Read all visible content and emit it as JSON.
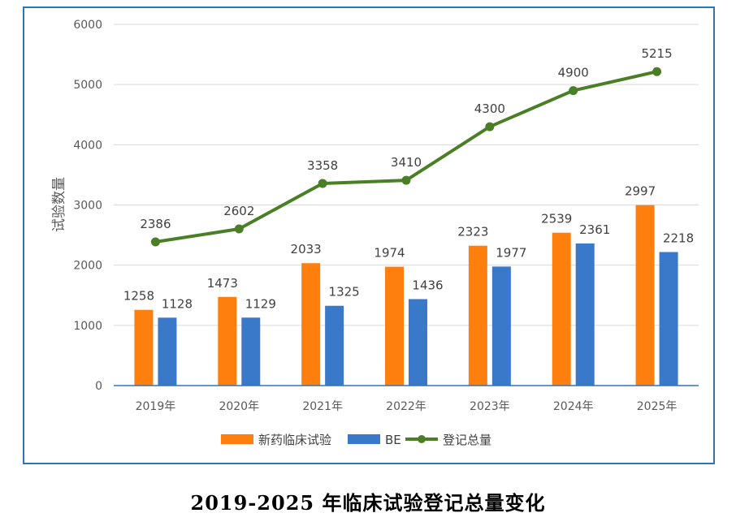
{
  "caption": "2019-2025 年临床试验登记总量变化",
  "chart_data": {
    "type": "bar",
    "categories": [
      "2019年",
      "2020年",
      "2021年",
      "2022年",
      "2023年",
      "2024年",
      "2025年"
    ],
    "series": [
      {
        "name": "新药临床试验",
        "type": "bar",
        "color": "#ff7f0e",
        "values": [
          1258,
          1473,
          2033,
          1974,
          2323,
          2539,
          2997
        ]
      },
      {
        "name": "BE",
        "type": "bar",
        "color": "#3a78c9",
        "values": [
          1128,
          1129,
          1325,
          1436,
          1977,
          2361,
          2218
        ]
      },
      {
        "name": "登记总量",
        "type": "line",
        "color": "#4a7f26",
        "values": [
          2386,
          2602,
          3358,
          3410,
          4300,
          4900,
          5215
        ]
      }
    ],
    "ylabel": "试验数量",
    "xlabel": "",
    "ylim": [
      0,
      6000
    ],
    "yticks": [
      0,
      1000,
      2000,
      3000,
      4000,
      5000,
      6000
    ],
    "grid": true,
    "legend": "bottom"
  }
}
